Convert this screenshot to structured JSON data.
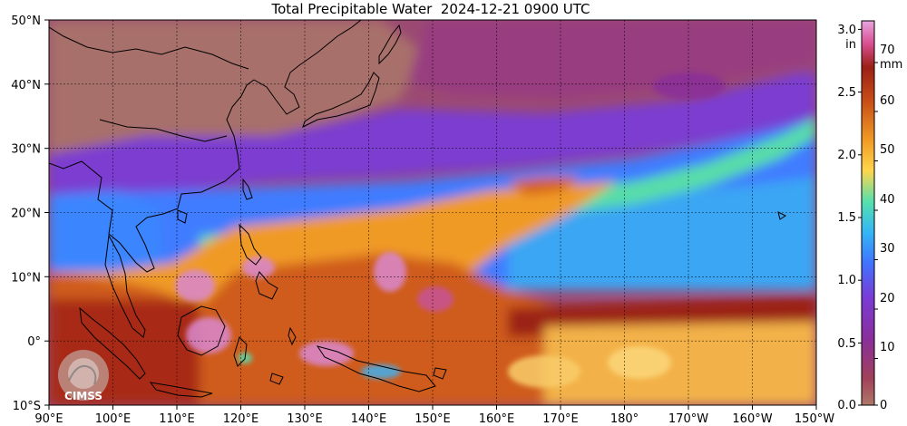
{
  "title": "Total Precipitable Water  2024-12-21 0900 UTC",
  "map": {
    "lat_labels": [
      "50°N",
      "40°N",
      "30°N",
      "20°N",
      "10°N",
      "0°",
      "10°S"
    ],
    "lon_labels": [
      "90°E",
      "100°E",
      "110°E",
      "120°E",
      "130°E",
      "140°E",
      "150°E",
      "160°E",
      "170°E",
      "180°",
      "170°W",
      "160°W",
      "150°W"
    ],
    "lat_range_deg": [
      -10,
      50
    ],
    "lon_range_deg": [
      90,
      210
    ]
  },
  "colorbar": {
    "inch_unit": "in",
    "mm_unit": "mm",
    "inch_ticks": [
      "3.0",
      "2.5",
      "2.0",
      "1.5",
      "1.0",
      "0.5",
      "0.0"
    ],
    "mm_ticks": [
      "70",
      "60",
      "50",
      "40",
      "30",
      "20",
      "10",
      "0"
    ],
    "colors": [
      "#b07868",
      "#a0405a",
      "#8a2f9a",
      "#7a3bd6",
      "#3f74ff",
      "#34b6f6",
      "#57e0ad",
      "#ffd64b",
      "#f09a25",
      "#c94e17",
      "#9b2016",
      "#d94d90",
      "#e8a6e0"
    ]
  },
  "logo": {
    "text": "CIMSS"
  }
}
